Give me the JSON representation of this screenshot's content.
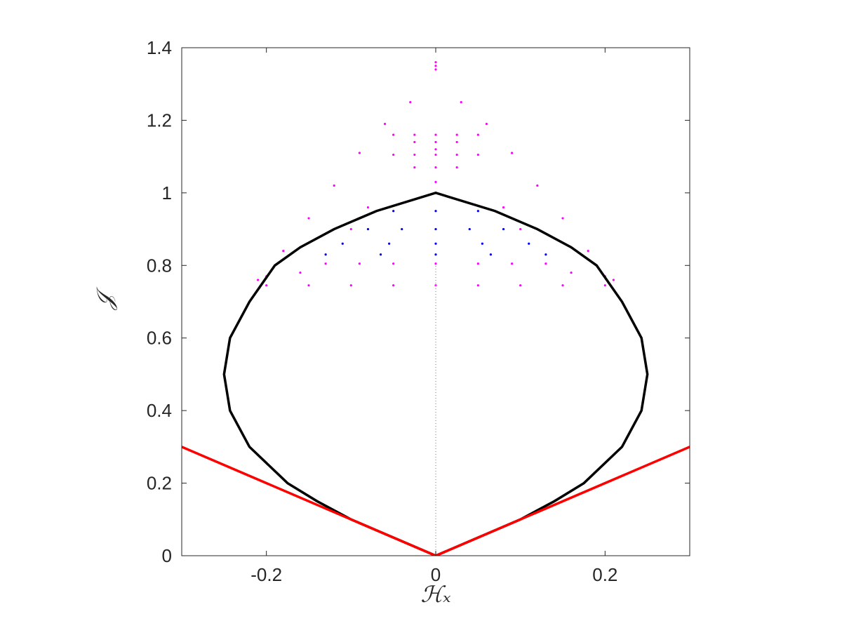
{
  "chart_data": {
    "type": "scatter",
    "xlabel": "ℋₓ",
    "ylabel": "𝒥",
    "xlim": [
      -0.3,
      0.3
    ],
    "xticks": [
      -0.2,
      0,
      0.2
    ],
    "ylim": [
      0,
      1.4
    ],
    "yticks": [
      0,
      0.2,
      0.4,
      0.6,
      0.8,
      1,
      1.2,
      1.4
    ],
    "box": true,
    "series": [
      {
        "color": "#ff00ff",
        "mode": "markers",
        "x": [
          0,
          0,
          0,
          -0.03,
          -0.06,
          -0.09,
          -0.12,
          -0.15,
          -0.18,
          -0.2,
          0.03,
          0.06,
          0.09,
          0.12,
          0.15,
          0.18,
          0.2,
          -0.05,
          -0.025,
          0,
          0.025,
          0.05,
          -0.025,
          0,
          0.025,
          0,
          -0.05,
          -0.025,
          0,
          0.025,
          0.05,
          -0.025,
          0,
          0.025,
          0,
          -0.13,
          -0.09,
          -0.05,
          0,
          0.05,
          0.09,
          0.13,
          -0.2,
          -0.15,
          -0.1,
          -0.05,
          0,
          0.05,
          0.1,
          0.15,
          0.2,
          -0.1,
          0.1,
          -0.08,
          0.08,
          -0.16,
          0.16,
          0.21,
          -0.21
        ],
        "y": [
          1.35,
          1.34,
          1.36,
          1.25,
          1.19,
          1.11,
          1.02,
          0.93,
          0.84,
          0.77,
          1.25,
          1.19,
          1.11,
          1.02,
          0.93,
          0.84,
          0.77,
          1.16,
          1.16,
          1.16,
          1.16,
          1.16,
          1.14,
          1.14,
          1.14,
          1.12,
          1.105,
          1.105,
          1.105,
          1.105,
          1.105,
          1.07,
          1.07,
          1.07,
          1.03,
          0.805,
          0.805,
          0.805,
          0.805,
          0.805,
          0.805,
          0.805,
          0.745,
          0.745,
          0.745,
          0.745,
          0.745,
          0.745,
          0.745,
          0.745,
          0.745,
          0.9,
          0.9,
          0.96,
          0.96,
          0.78,
          0.78,
          0.76,
          0.76
        ]
      },
      {
        "color": "#0000ff",
        "mode": "markers",
        "x": [
          0,
          -0.05,
          0,
          0.05,
          -0.08,
          -0.04,
          0,
          0.04,
          0.08,
          -0.11,
          -0.055,
          0,
          0.055,
          0.11,
          -0.13,
          -0.065,
          0,
          0.065,
          0.13
        ],
        "y": [
          1.0,
          0.95,
          0.95,
          0.95,
          0.9,
          0.9,
          0.9,
          0.9,
          0.9,
          0.86,
          0.86,
          0.86,
          0.86,
          0.86,
          0.83,
          0.83,
          0.83,
          0.83,
          0.83
        ]
      },
      {
        "color": "#00e5ff",
        "mode": "dotted",
        "x": [
          0,
          0
        ],
        "y": [
          0,
          0.8
        ]
      },
      {
        "color": "#000000",
        "mode": "line",
        "x": [
          0,
          0.05,
          0.1,
          0.14,
          0.175,
          0.22,
          0.243,
          0.25,
          0.243,
          0.22,
          0.19,
          0.16,
          0.12,
          0.07,
          0,
          -0.07,
          -0.12,
          -0.16,
          -0.19,
          -0.22,
          -0.243,
          -0.25,
          -0.243,
          -0.22,
          -0.175,
          -0.14,
          -0.1,
          -0.05,
          0
        ],
        "y": [
          0,
          0.05,
          0.1,
          0.15,
          0.2,
          0.3,
          0.4,
          0.5,
          0.6,
          0.7,
          0.8,
          0.85,
          0.9,
          0.95,
          1.0,
          0.95,
          0.9,
          0.85,
          0.8,
          0.7,
          0.6,
          0.5,
          0.4,
          0.3,
          0.2,
          0.15,
          0.1,
          0.05,
          0
        ]
      },
      {
        "color": "#ff0000",
        "mode": "line",
        "x": [
          -0.3,
          0,
          0.3
        ],
        "y": [
          0.3,
          0,
          0.3
        ]
      }
    ]
  }
}
